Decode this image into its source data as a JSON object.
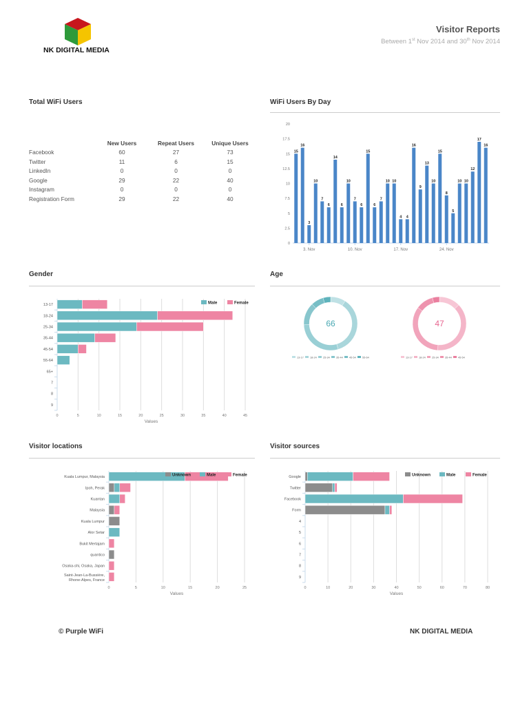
{
  "header": {
    "brand": "NK DIGITAL MEDIA",
    "title": "Visitor Reports",
    "subtitle_pre": "Between 1",
    "sup1": "st",
    "subtitle_mid": " Nov 2014 and 30",
    "sup2": "th",
    "subtitle_post": " Nov 2014"
  },
  "total_wifi": {
    "title": "Total WiFi Users",
    "columns": [
      "",
      "New Users",
      "Repeat Users",
      "Unique Users"
    ],
    "rows": [
      [
        "Facebook",
        "60",
        "27",
        "73"
      ],
      [
        "Twitter",
        "11",
        "6",
        "15"
      ],
      [
        "LinkedIn",
        "0",
        "0",
        "0"
      ],
      [
        "Google",
        "29",
        "22",
        "40"
      ],
      [
        "Instagram",
        "0",
        "0",
        "0"
      ],
      [
        "Registration Form",
        "29",
        "22",
        "40"
      ]
    ]
  },
  "sections": {
    "by_day": "WiFi Users By Day",
    "gender": "Gender",
    "age": "Age",
    "locations": "Visitor locations",
    "sources": "Visitor sources"
  },
  "colors": {
    "bar": "#4a86c8",
    "male": "#6cb9c1",
    "female": "#ee85a3",
    "unknown": "#8c8c8c"
  },
  "chart_data": [
    {
      "type": "bar",
      "id": "by_day",
      "values": [
        15,
        16,
        3,
        10,
        7,
        6,
        14,
        6,
        10,
        7,
        6,
        15,
        6,
        7,
        10,
        10,
        4,
        4,
        16,
        9,
        13,
        10,
        15,
        8,
        5,
        10,
        10,
        12,
        17,
        16
      ],
      "x_tick_labels": [
        {
          "index": 2,
          "label": "3. Nov"
        },
        {
          "index": 9,
          "label": "10. Nov"
        },
        {
          "index": 16,
          "label": "17. Nov"
        },
        {
          "index": 23,
          "label": "24. Nov"
        }
      ],
      "ylim": [
        0,
        20
      ],
      "yticks": [
        "0",
        "2.5",
        "5",
        "7.5",
        "10",
        "12.5",
        "15",
        "17.5",
        "20"
      ],
      "data_labels": true
    },
    {
      "type": "bar",
      "orientation": "horizontal",
      "stacked": true,
      "id": "gender",
      "categories": [
        "13-17",
        "18-24",
        "25-34",
        "35-44",
        "45-54",
        "55-64",
        "65+",
        "7",
        "8",
        "9"
      ],
      "series": [
        {
          "name": "Male",
          "values": [
            6,
            24,
            19,
            9,
            5,
            3,
            0,
            0,
            0,
            0
          ]
        },
        {
          "name": "Female",
          "values": [
            6,
            18,
            16,
            5,
            2,
            0,
            0,
            0,
            0,
            0
          ]
        }
      ],
      "xlim": [
        0,
        45
      ],
      "xticks": [
        "0",
        "5",
        "10",
        "15",
        "20",
        "25",
        "30",
        "35",
        "40",
        "45"
      ],
      "xlabel": "Values",
      "legend": "top-right",
      "grid": true
    },
    {
      "type": "pie",
      "id": "age_male",
      "donut": true,
      "center_label": "66",
      "categories": [
        "13-17",
        "18-24",
        "25-34",
        "35-44",
        "45-54",
        "55-64"
      ],
      "values": [
        6,
        24,
        19,
        9,
        5,
        3
      ]
    },
    {
      "type": "pie",
      "id": "age_female",
      "donut": true,
      "center_label": "47",
      "categories": [
        "13-17",
        "18-24",
        "25-34",
        "35-44",
        "45-54"
      ],
      "values": [
        6,
        18,
        16,
        5,
        2
      ]
    },
    {
      "type": "bar",
      "orientation": "horizontal",
      "stacked": true,
      "id": "locations",
      "categories": [
        "Kuala Lumpur, Malaysia",
        "Ipoh, Perak",
        "Kuantan",
        "Malaysia",
        "Kuala Lumpur",
        "Alor Setar",
        "Bukit Mertajam",
        "quantico",
        "Osaka-shi, Osaka, Japan",
        "Saint-Jean-La-Bussière, Rhone-Alpes, France"
      ],
      "series": [
        {
          "name": "Unknown",
          "values": [
            0,
            1,
            0,
            1,
            2,
            0,
            0,
            1,
            0,
            0
          ]
        },
        {
          "name": "Male",
          "values": [
            14,
            1,
            2,
            0,
            0,
            2,
            0,
            0,
            0,
            0
          ]
        },
        {
          "name": "Female",
          "values": [
            8,
            2,
            1,
            1,
            0,
            0,
            1,
            0,
            1,
            1
          ]
        }
      ],
      "xlim": [
        0,
        25
      ],
      "xticks": [
        "0",
        "5",
        "10",
        "15",
        "20",
        "25"
      ],
      "xlabel": "Values",
      "legend": "top-right",
      "grid": true
    },
    {
      "type": "bar",
      "orientation": "horizontal",
      "stacked": true,
      "id": "sources",
      "categories": [
        "Google",
        "Twitter",
        "Facebook",
        "Form",
        "4",
        "5",
        "6",
        "7",
        "8",
        "9"
      ],
      "series": [
        {
          "name": "Unknown",
          "values": [
            1,
            12,
            0,
            35,
            0,
            0,
            0,
            0,
            0,
            0
          ]
        },
        {
          "name": "Male",
          "values": [
            20,
            1,
            43,
            2,
            0,
            0,
            0,
            0,
            0,
            0
          ]
        },
        {
          "name": "Female",
          "values": [
            16,
            1,
            26,
            1,
            0,
            0,
            0,
            0,
            0,
            0
          ]
        }
      ],
      "xlim": [
        0,
        80
      ],
      "xticks": [
        "0",
        "10",
        "20",
        "30",
        "40",
        "50",
        "60",
        "70",
        "80"
      ],
      "xlabel": "Values",
      "legend": "top-right",
      "grid": true
    }
  ],
  "footer": {
    "left": "© Purple WiFi",
    "right": "NK DIGITAL MEDIA"
  }
}
